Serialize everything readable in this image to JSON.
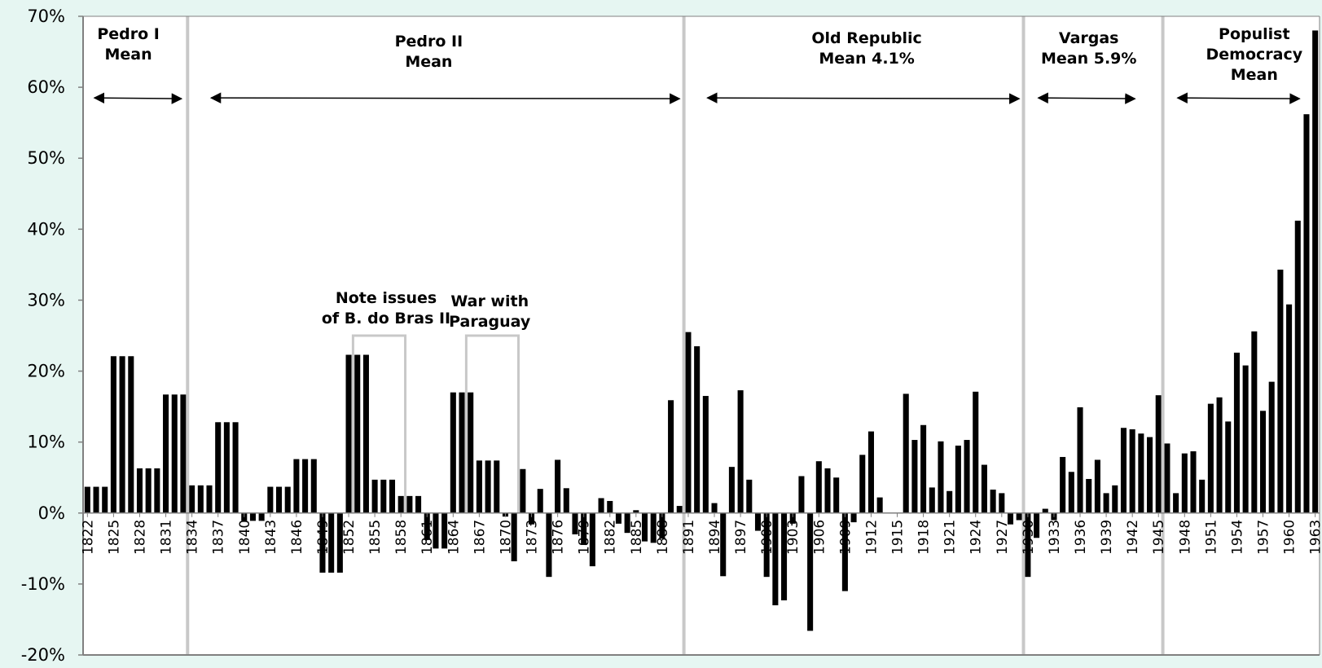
{
  "chart_data": {
    "type": "bar",
    "title": "",
    "xlabel": "",
    "ylabel": "",
    "ylim": [
      -20,
      70
    ],
    "y_ticks": [
      "70%",
      "60%",
      "50%",
      "40%",
      "30%",
      "20%",
      "10%",
      "0%",
      "-10%",
      "-20%"
    ],
    "y_tick_values": [
      70,
      60,
      50,
      40,
      30,
      20,
      10,
      0,
      -10,
      -20
    ],
    "x_tick_labels": [
      "1822",
      "1825",
      "1828",
      "1831",
      "1834",
      "1837",
      "1840",
      "1843",
      "1846",
      "1849",
      "1852",
      "1855",
      "1858",
      "1861",
      "1864",
      "1867",
      "1870",
      "1873",
      "1876",
      "1879",
      "1882",
      "1885",
      "1888",
      "1891",
      "1894",
      "1897",
      "1900",
      "1903",
      "1906",
      "1909",
      "1912",
      "1915",
      "1918",
      "1921",
      "1924",
      "1927",
      "1930",
      "1933",
      "1936",
      "1939",
      "1942",
      "1945",
      "1948",
      "1951",
      "1954",
      "1957",
      "1960",
      "1963"
    ],
    "grid": false,
    "legend": "none",
    "bar_color": "#000000",
    "divider_color": "#c8c8c8",
    "x": [
      1822,
      1823,
      1824,
      1825,
      1826,
      1827,
      1828,
      1829,
      1830,
      1831,
      1832,
      1833,
      1834,
      1835,
      1836,
      1837,
      1838,
      1839,
      1840,
      1841,
      1842,
      1843,
      1844,
      1845,
      1846,
      1847,
      1848,
      1849,
      1850,
      1851,
      1852,
      1853,
      1854,
      1855,
      1856,
      1857,
      1858,
      1859,
      1860,
      1861,
      1862,
      1863,
      1864,
      1865,
      1866,
      1867,
      1868,
      1869,
      1870,
      1871,
      1872,
      1873,
      1874,
      1875,
      1876,
      1877,
      1878,
      1879,
      1880,
      1881,
      1882,
      1883,
      1884,
      1885,
      1886,
      1887,
      1888,
      1889,
      1890,
      1891,
      1892,
      1893,
      1894,
      1895,
      1896,
      1897,
      1898,
      1899,
      1900,
      1901,
      1902,
      1903,
      1904,
      1905,
      1906,
      1907,
      1908,
      1909,
      1910,
      1911,
      1912,
      1913,
      1914,
      1915,
      1916,
      1917,
      1918,
      1919,
      1920,
      1921,
      1922,
      1923,
      1924,
      1925,
      1926,
      1927,
      1928,
      1929,
      1930,
      1931,
      1932,
      1933,
      1934,
      1935,
      1936,
      1937,
      1938,
      1939,
      1940,
      1941,
      1942,
      1943,
      1944,
      1945,
      1946,
      1947,
      1948,
      1949,
      1950,
      1951,
      1952,
      1953,
      1954,
      1955,
      1956,
      1957,
      1958,
      1959,
      1960,
      1961,
      1962,
      1963
    ],
    "values": [
      3.7,
      3.7,
      3.7,
      22.1,
      22.1,
      22.1,
      6.3,
      6.3,
      6.3,
      16.7,
      16.7,
      16.7,
      3.9,
      3.9,
      3.9,
      12.8,
      12.8,
      12.8,
      -1.1,
      -1.1,
      -1.1,
      3.7,
      3.7,
      3.7,
      7.6,
      7.6,
      7.6,
      -8.4,
      -8.4,
      -8.4,
      22.3,
      22.3,
      22.3,
      4.7,
      4.7,
      4.7,
      2.4,
      2.4,
      2.4,
      -3.8,
      -5.0,
      -5.0,
      17.0,
      17.0,
      17.0,
      7.4,
      7.4,
      7.4,
      -0.5,
      -6.8,
      6.2,
      -1.6,
      3.4,
      -9.0,
      7.5,
      3.5,
      -3.0,
      -4.5,
      -7.5,
      2.1,
      1.7,
      -1.5,
      -2.8,
      0.4,
      -4.0,
      -4.2,
      -3.6,
      15.9,
      1.0,
      25.5,
      23.5,
      16.5,
      1.4,
      -8.9,
      6.5,
      17.3,
      4.7,
      -2.5,
      -9.0,
      -13.0,
      -12.3,
      -1.5,
      5.2,
      -16.6,
      7.3,
      6.3,
      5.0,
      -11.0,
      -1.3,
      8.2,
      11.5,
      2.2,
      0.0,
      0.0,
      16.8,
      10.3,
      12.4,
      3.6,
      10.1,
      3.1,
      9.5,
      10.3,
      17.1,
      6.8,
      3.3,
      2.8,
      -1.6,
      -1.0,
      -9.0,
      -3.5,
      0.6,
      -1.0,
      7.9,
      5.8,
      14.9,
      4.8,
      7.5,
      2.8,
      3.9,
      12.0,
      11.8,
      11.2,
      10.7,
      16.6,
      9.8,
      2.8,
      8.4,
      8.7,
      4.7,
      15.4,
      16.3,
      12.9,
      22.6,
      20.8,
      25.6,
      14.4,
      18.5,
      34.3,
      29.4,
      41.2,
      56.2,
      68.0
    ],
    "annotations": [
      {
        "lines": [
          "Pedro I",
          "Mean"
        ]
      },
      {
        "lines": [
          "Pedro II",
          "Mean"
        ]
      },
      {
        "lines": [
          "Old Republic",
          "Mean 4.1%"
        ]
      },
      {
        "lines": [
          "Vargas",
          "Mean 5.9%"
        ]
      },
      {
        "lines": [
          "Populist",
          "Democracy",
          "Mean"
        ]
      },
      {
        "lines": [
          "Note issues",
          "of B. do Bras II"
        ]
      },
      {
        "lines": [
          "War with",
          "Paraguay"
        ]
      }
    ],
    "era_dividers": [
      1833.5,
      1890.5,
      1929.5,
      1945.5
    ],
    "range_arrows": [
      [
        1822.8,
        1832.8
      ],
      [
        1836.2,
        1890.0
      ],
      [
        1893.2,
        1929.0
      ],
      [
        1931.2,
        1942.3
      ],
      [
        1947.2,
        1961.2
      ]
    ],
    "brackets": [
      [
        1853,
        1859
      ],
      [
        1866,
        1872
      ]
    ]
  }
}
